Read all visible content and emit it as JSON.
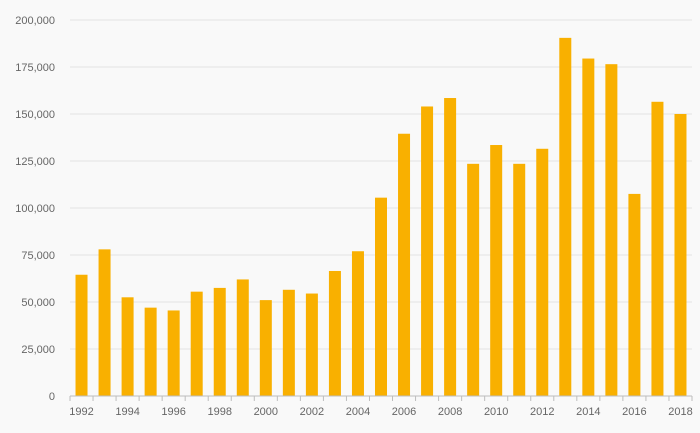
{
  "chart_data": {
    "type": "bar",
    "title": "",
    "xlabel": "",
    "ylabel": "",
    "categories": [
      "1992",
      "1993",
      "1994",
      "1995",
      "1996",
      "1997",
      "1998",
      "1999",
      "2000",
      "2001",
      "2002",
      "2003",
      "2004",
      "2005",
      "2006",
      "2007",
      "2008",
      "2009",
      "2010",
      "2011",
      "2012",
      "2013",
      "2014",
      "2015",
      "2016",
      "2017",
      "2018"
    ],
    "values": [
      64500,
      78000,
      52500,
      47000,
      45500,
      55500,
      57500,
      62000,
      51000,
      56500,
      54500,
      66500,
      77000,
      105500,
      139500,
      154000,
      158500,
      123500,
      133500,
      123500,
      131500,
      190500,
      179500,
      176500,
      107500,
      156500,
      150000
    ],
    "ylim": [
      0,
      200000
    ],
    "yticks": [
      "0",
      "25,000",
      "50,000",
      "75,000",
      "100,000",
      "125,000",
      "150,000",
      "175,000",
      "200,000"
    ],
    "xtick_labels": [
      "1992",
      "1994",
      "1996",
      "1998",
      "2000",
      "2002",
      "2004",
      "2006",
      "2008",
      "2010",
      "2012",
      "2014",
      "2016",
      "2018"
    ],
    "grid": true,
    "legend": "none",
    "bar_color": "#f9b000"
  }
}
